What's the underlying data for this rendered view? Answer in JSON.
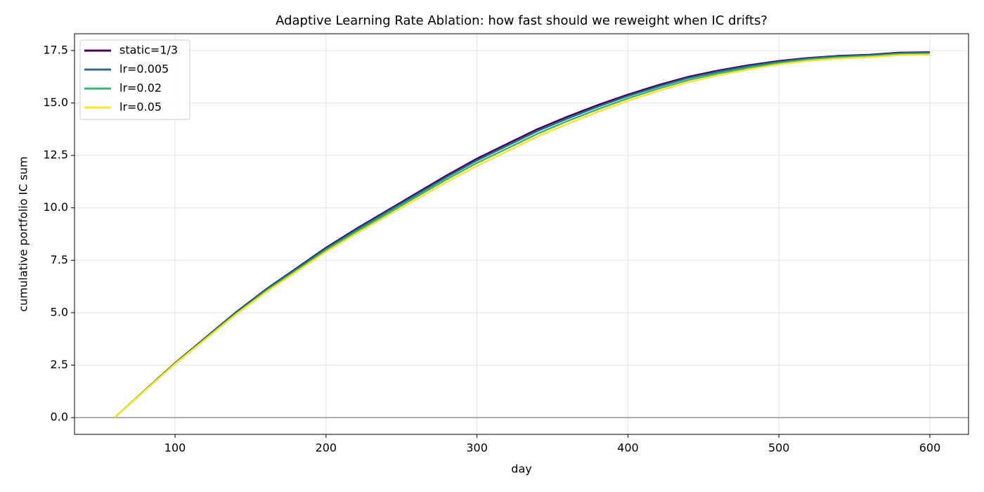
{
  "chart_data": {
    "type": "line",
    "title": "Adaptive Learning Rate Ablation: how fast should we reweight when IC drifts?",
    "xlabel": "day",
    "ylabel": "cumulative portfolio IC sum",
    "x": [
      60,
      80,
      100,
      120,
      140,
      160,
      180,
      200,
      220,
      240,
      260,
      280,
      300,
      320,
      340,
      360,
      380,
      400,
      420,
      440,
      460,
      480,
      500,
      520,
      540,
      560,
      580,
      600
    ],
    "series": [
      {
        "name": "static=1/3",
        "color": "#440154",
        "values": [
          0,
          1.3,
          2.6,
          3.8,
          5.0,
          6.1,
          7.1,
          8.1,
          9.0,
          9.85,
          10.7,
          11.55,
          12.35,
          13.05,
          13.75,
          14.35,
          14.9,
          15.4,
          15.85,
          16.25,
          16.55,
          16.8,
          17.0,
          17.15,
          17.25,
          17.3,
          17.4,
          17.42
        ]
      },
      {
        "name": "lr=0.005",
        "color": "#31688e",
        "values": [
          0,
          1.3,
          2.59,
          3.78,
          4.97,
          6.07,
          7.06,
          8.05,
          8.94,
          9.79,
          10.63,
          11.47,
          12.26,
          12.96,
          13.66,
          14.26,
          14.82,
          15.33,
          15.78,
          16.19,
          16.49,
          16.75,
          16.96,
          17.12,
          17.22,
          17.27,
          17.37,
          17.39
        ]
      },
      {
        "name": "lr=0.02",
        "color": "#35b779",
        "values": [
          0,
          1.29,
          2.57,
          3.75,
          4.93,
          6.02,
          6.99,
          7.98,
          8.86,
          9.69,
          10.53,
          11.36,
          12.14,
          12.83,
          13.53,
          14.14,
          14.7,
          15.22,
          15.68,
          16.09,
          16.41,
          16.68,
          16.9,
          17.07,
          17.17,
          17.23,
          17.33,
          17.35
        ]
      },
      {
        "name": "lr=0.05",
        "color": "#fde725",
        "values": [
          0,
          1.28,
          2.55,
          3.72,
          4.89,
          5.96,
          6.93,
          7.9,
          8.77,
          9.59,
          10.41,
          11.23,
          12.0,
          12.69,
          13.39,
          14.0,
          14.57,
          15.1,
          15.57,
          15.99,
          16.32,
          16.6,
          16.84,
          17.01,
          17.12,
          17.18,
          17.28,
          17.3
        ]
      }
    ],
    "xlim": [
      33.4,
      625.6
    ],
    "ylim": [
      -0.8,
      18.3
    ],
    "xticks": [
      100,
      200,
      300,
      400,
      500,
      600
    ],
    "yticks": [
      {
        "value": 0,
        "label": "0.0"
      },
      2.5,
      {
        "value": 5,
        "label": "5.0"
      },
      7.5,
      {
        "value": 10,
        "label": "10.0"
      },
      12.5,
      {
        "value": 15,
        "label": "15.0"
      },
      17.5
    ],
    "axhline": 0,
    "axhline_color": "#808080",
    "grid": true,
    "legend": "upper left"
  }
}
